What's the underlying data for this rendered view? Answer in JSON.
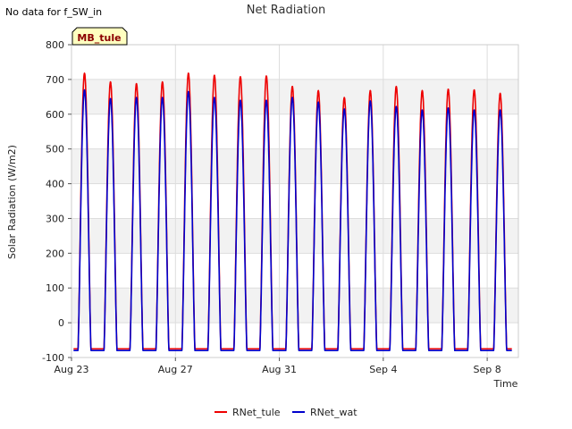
{
  "no_data_note": "No data for f_SW_in",
  "chart_data": {
    "type": "line",
    "title": "Net Radiation",
    "xlabel": "Time",
    "ylabel": "Solar Radiation (W/m2)",
    "xlim": [
      0,
      17.2
    ],
    "ylim": [
      -100,
      800
    ],
    "yticks": [
      -100,
      0,
      100,
      200,
      300,
      400,
      500,
      600,
      700,
      800
    ],
    "xticks": [
      {
        "label": "Aug 23",
        "day": 0
      },
      {
        "label": "Aug 27",
        "day": 4
      },
      {
        "label": "Aug 31",
        "day": 8
      },
      {
        "label": "Sep 4",
        "day": 12
      },
      {
        "label": "Sep 8",
        "day": 16
      }
    ],
    "grid": true,
    "banded_background": true,
    "legend_position": "bottom",
    "site_badge": "MB_tule",
    "colors": {
      "RNet_tule": "#ee0000",
      "RNet_wat": "#0000cc",
      "badge_bg": "#ffffc0",
      "badge_text": "#8b0000"
    },
    "night_value": {
      "RNet_tule": -75,
      "RNet_wat": -80
    },
    "series": [
      {
        "name": "RNet_tule",
        "daily_peak": [
          718,
          693,
          688,
          693,
          718,
          712,
          708,
          710,
          680,
          668,
          648,
          668,
          680,
          668,
          672,
          670,
          660
        ]
      },
      {
        "name": "RNet_wat",
        "daily_peak": [
          670,
          645,
          648,
          648,
          665,
          648,
          640,
          640,
          648,
          635,
          615,
          638,
          622,
          612,
          618,
          612,
          612
        ]
      }
    ]
  }
}
